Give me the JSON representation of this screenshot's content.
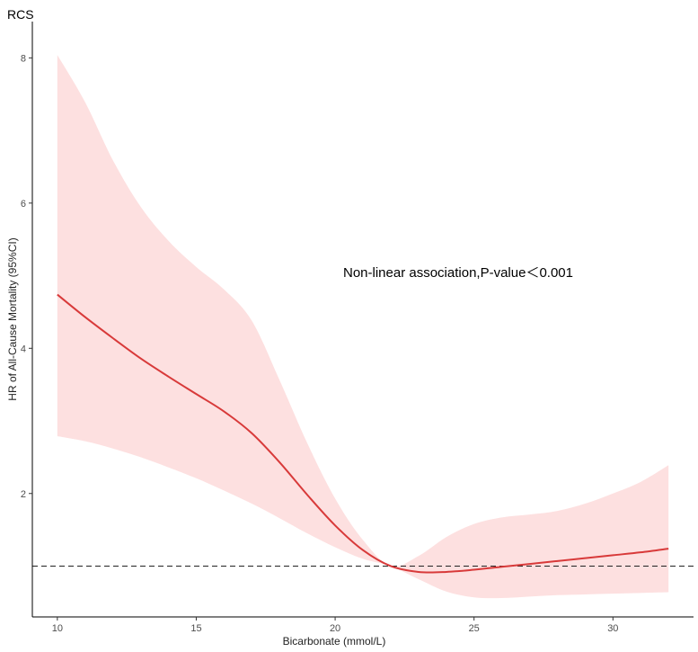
{
  "chart_data": {
    "type": "line",
    "title": "RCS",
    "xlabel": "Bicarbonate (mmol/L)",
    "ylabel": "HR of All-Cause Mortality (95%CI)",
    "annotation": "Non-linear association,P-value＜0.001",
    "xlim": [
      9.1,
      32.9
    ],
    "ylim": [
      0.3,
      8.5
    ],
    "x_ticks": [
      10,
      15,
      20,
      25,
      30
    ],
    "y_ticks": [
      2,
      4,
      6,
      8
    ],
    "x_tick_labels": [
      "10",
      "15",
      "20",
      "25",
      "30"
    ],
    "y_tick_labels": [
      "2",
      "4",
      "6",
      "8"
    ],
    "reference_line": 1.0,
    "grid": false,
    "series": [
      {
        "x": [
          10,
          11,
          12,
          13,
          14,
          15,
          16,
          17,
          18,
          19,
          20,
          21,
          22,
          23,
          24,
          25,
          26,
          27,
          28,
          29,
          30,
          31,
          32
        ],
        "hr": [
          4.74,
          4.43,
          4.14,
          3.86,
          3.61,
          3.37,
          3.13,
          2.83,
          2.43,
          1.98,
          1.56,
          1.22,
          1.0,
          0.92,
          0.92,
          0.95,
          0.99,
          1.03,
          1.07,
          1.11,
          1.15,
          1.19,
          1.24
        ],
        "lower": [
          2.79,
          2.72,
          2.62,
          2.5,
          2.36,
          2.21,
          2.04,
          1.86,
          1.66,
          1.45,
          1.26,
          1.1,
          1.0,
          0.82,
          0.65,
          0.57,
          0.56,
          0.58,
          0.6,
          0.61,
          0.62,
          0.63,
          0.64
        ],
        "upper": [
          8.04,
          7.39,
          6.59,
          5.95,
          5.48,
          5.12,
          4.81,
          4.38,
          3.56,
          2.69,
          1.93,
          1.36,
          1.0,
          1.14,
          1.4,
          1.58,
          1.67,
          1.71,
          1.76,
          1.86,
          2.0,
          2.16,
          2.39
        ]
      }
    ],
    "colors": {
      "line": "#d83a3a",
      "ribbon": "#fde0e0",
      "reference": "#222222",
      "axis": "#000000"
    }
  }
}
